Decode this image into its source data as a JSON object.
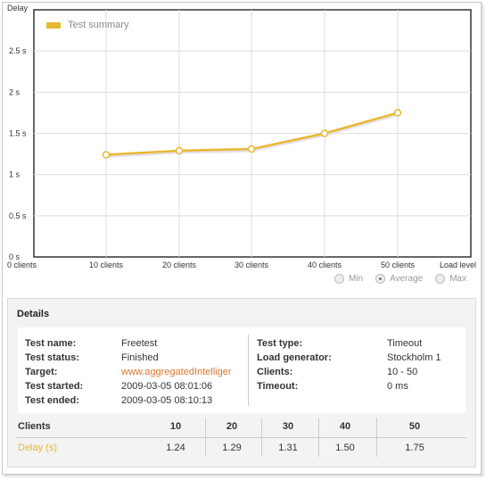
{
  "chart_data": {
    "type": "line",
    "title": "",
    "ylabel": "Delay",
    "xlabel": "Load level",
    "ylim": [
      0,
      3
    ],
    "yticks": [
      "0 s",
      "0.5 s",
      "1 s",
      "1.5 s",
      "2 s",
      "2.5 s"
    ],
    "categories": [
      "0 clients",
      "10 clients",
      "20 clients",
      "30 clients",
      "40 clients",
      "50 clients"
    ],
    "series": [
      {
        "name": "Test summary",
        "x": [
          10,
          20,
          30,
          40,
          50
        ],
        "values": [
          1.24,
          1.29,
          1.31,
          1.5,
          1.75
        ]
      }
    ],
    "legend_position": "top-left",
    "grid": true,
    "series_color": "#e8b830"
  },
  "legend": {
    "label": "Test summary"
  },
  "view_options": {
    "min": "Min",
    "average": "Average",
    "max": "Max",
    "selected": "Average"
  },
  "details": {
    "title": "Details",
    "left": [
      {
        "label": "Test name:",
        "value": "Freetest"
      },
      {
        "label": "Test status:",
        "value": "Finished"
      },
      {
        "label": "Target:",
        "value": "www.aggregatedIntelliger"
      },
      {
        "label": "Test started:",
        "value": "2009-03-05 08:01:06"
      },
      {
        "label": "Test ended:",
        "value": "2009-03-05 08:10:13"
      }
    ],
    "right": [
      {
        "label": "Test type:",
        "value": "Timeout"
      },
      {
        "label": "Load generator:",
        "value": "Stockholm 1"
      },
      {
        "label": "Clients:",
        "value": "10 - 50"
      },
      {
        "label": "Timeout:",
        "value": "0 ms"
      }
    ]
  },
  "results": {
    "clients_label": "Clients",
    "delay_label": "Delay (s)",
    "clients": [
      "10",
      "20",
      "30",
      "40",
      "50"
    ],
    "delays": [
      "1.24",
      "1.29",
      "1.31",
      "1.50",
      "1.75"
    ],
    "delay_label_color": "#e8b830"
  }
}
